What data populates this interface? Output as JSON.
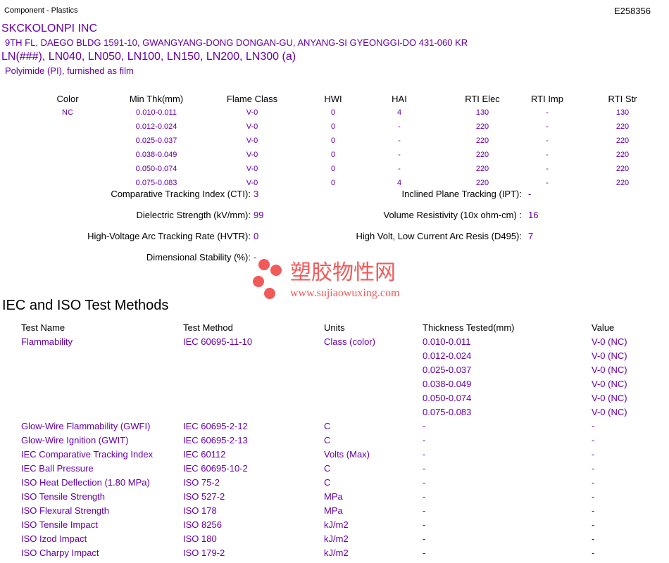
{
  "header": {
    "category": "Component - Plastics",
    "file_number": "E258356"
  },
  "company": {
    "name": "SKCKOLONPI INC",
    "address": "9TH FL, DAEGO BLDG 1591-10, GWANGYANG-DONG DONGAN-GU, ANYANG-SI  GYEONGGI-DO  431-060 KR",
    "products": "LN(###), LN040, LN050, LN100, LN150, LN200, LN300 (a)",
    "material": "Polyimide (PI), furnished as film"
  },
  "ratings": {
    "headers": [
      "Color",
      "Min Thk(mm)",
      "Flame Class",
      "HWI",
      "HAI",
      "RTI Elec",
      "RTI Imp",
      "RTI Str"
    ],
    "rows": [
      [
        "NC",
        "0.010-0.011",
        "V-0",
        "0",
        "4",
        "130",
        "-",
        "130"
      ],
      [
        "",
        "0.012-0.024",
        "V-0",
        "0",
        "-",
        "220",
        "-",
        "220"
      ],
      [
        "",
        "0.025-0.037",
        "V-0",
        "0",
        "-",
        "220",
        "-",
        "220"
      ],
      [
        "",
        "0.038-0.049",
        "V-0",
        "0",
        "-",
        "220",
        "-",
        "220"
      ],
      [
        "",
        "0.050-0.074",
        "V-0",
        "0",
        "-",
        "220",
        "-",
        "220"
      ],
      [
        "",
        "0.075-0.083",
        "V-0",
        "0",
        "4",
        "220",
        "-",
        "220"
      ]
    ]
  },
  "properties": {
    "left": [
      {
        "label": "Comparative Tracking Index (CTI):",
        "value": "3"
      },
      {
        "label": "Dielectric Strength (kV/mm):",
        "value": "99"
      },
      {
        "label": "High-Voltage Arc Tracking Rate (HVTR):",
        "value": "0"
      },
      {
        "label": "Dimensional Stability (%):",
        "value": "-"
      }
    ],
    "right": [
      {
        "label": "Inclined Plane Tracking (IPT):",
        "value": "-"
      },
      {
        "label": "Volume Resistivity (10x ohm-cm) :",
        "value": "16"
      },
      {
        "label": "High Volt, Low Current Arc Resis (D495):",
        "value": "7"
      }
    ]
  },
  "watermark": {
    "text": "塑胶物性网",
    "url": "www.sujiaowuxing.com",
    "color": "#f25a5a"
  },
  "iec": {
    "title": "IEC and ISO Test Methods",
    "headers": [
      "Test Name",
      "Test Method",
      "Units",
      "Thickness Tested(mm)",
      "Value"
    ],
    "rows": [
      [
        "Flammability",
        "IEC 60695-11-10",
        "Class (color)",
        "0.010-0.011",
        "V-0 (NC)"
      ],
      [
        "",
        "",
        "",
        "0.012-0.024",
        "V-0 (NC)"
      ],
      [
        "",
        "",
        "",
        "0.025-0.037",
        "V-0 (NC)"
      ],
      [
        "",
        "",
        "",
        "0.038-0.049",
        "V-0 (NC)"
      ],
      [
        "",
        "",
        "",
        "0.050-0.074",
        "V-0 (NC)"
      ],
      [
        "",
        "",
        "",
        "0.075-0.083",
        "V-0 (NC)"
      ],
      [
        "Glow-Wire Flammability (GWFI)",
        "IEC 60695-2-12",
        "C",
        "-",
        "-"
      ],
      [
        "Glow-Wire Ignition (GWIT)",
        "IEC 60695-2-13",
        "C",
        "-",
        "-"
      ],
      [
        "IEC Comparative Tracking Index",
        "IEC 60112",
        "Volts (Max)",
        "-",
        "-"
      ],
      [
        "IEC Ball Pressure",
        "IEC 60695-10-2",
        "C",
        "-",
        "-"
      ],
      [
        "ISO Heat Deflection (1.80 MPa)",
        "ISO 75-2",
        "C",
        "-",
        "-"
      ],
      [
        "ISO Tensile Strength",
        "ISO 527-2",
        "MPa",
        "-",
        "-"
      ],
      [
        "ISO Flexural Strength",
        "ISO 178",
        "MPa",
        "-",
        "-"
      ],
      [
        "ISO Tensile Impact",
        "ISO 8256",
        "kJ/m2",
        "-",
        "-"
      ],
      [
        "ISO Izod Impact",
        "ISO 180",
        "kJ/m2",
        "-",
        "-"
      ],
      [
        "ISO Charpy Impact",
        "ISO 179-2",
        "kJ/m2",
        "-",
        "-"
      ]
    ]
  },
  "colors": {
    "text_accent": "#6600aa",
    "text_default": "#000000"
  }
}
